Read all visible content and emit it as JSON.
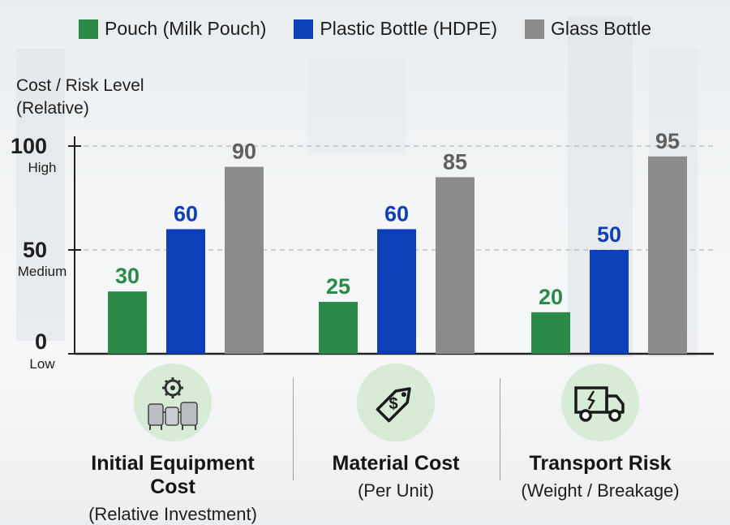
{
  "chart_data": {
    "type": "bar",
    "title": "",
    "ylabel": "Cost / Risk Level (Relative)",
    "ylabel_lines": [
      "Cost / Risk Level",
      "(Relative)"
    ],
    "xlabel": "",
    "ylim": [
      0,
      100
    ],
    "yticks": [
      {
        "value": 100,
        "label": "100",
        "sublabel": "High"
      },
      {
        "value": 50,
        "label": "50",
        "sublabel": "Medium"
      },
      {
        "value": 0,
        "label": "0",
        "sublabel": "Low"
      }
    ],
    "grid": true,
    "legend_position": "top",
    "categories": [
      {
        "title": "Initial Equipment Cost",
        "subtitle": "(Relative Investment)",
        "icon": "gear-tanks-icon"
      },
      {
        "title": "Material Cost",
        "subtitle": "(Per Unit)",
        "icon": "price-tag-icon"
      },
      {
        "title": "Transport Risk",
        "subtitle": "(Weight / Breakage)",
        "icon": "broken-truck-icon"
      }
    ],
    "series": [
      {
        "name": "Pouch (Milk Pouch)",
        "color": "#2b8a47",
        "values": [
          30,
          25,
          20
        ]
      },
      {
        "name": "Plastic Bottle (HDPE)",
        "color": "#0d3fb8",
        "values": [
          60,
          60,
          50
        ]
      },
      {
        "name": "Glass Bottle",
        "color": "#8c8c8c",
        "values": [
          90,
          85,
          95
        ]
      }
    ],
    "label_colors": [
      "#2b8a47",
      "#0d3fb8",
      "#5f5f5f"
    ]
  }
}
